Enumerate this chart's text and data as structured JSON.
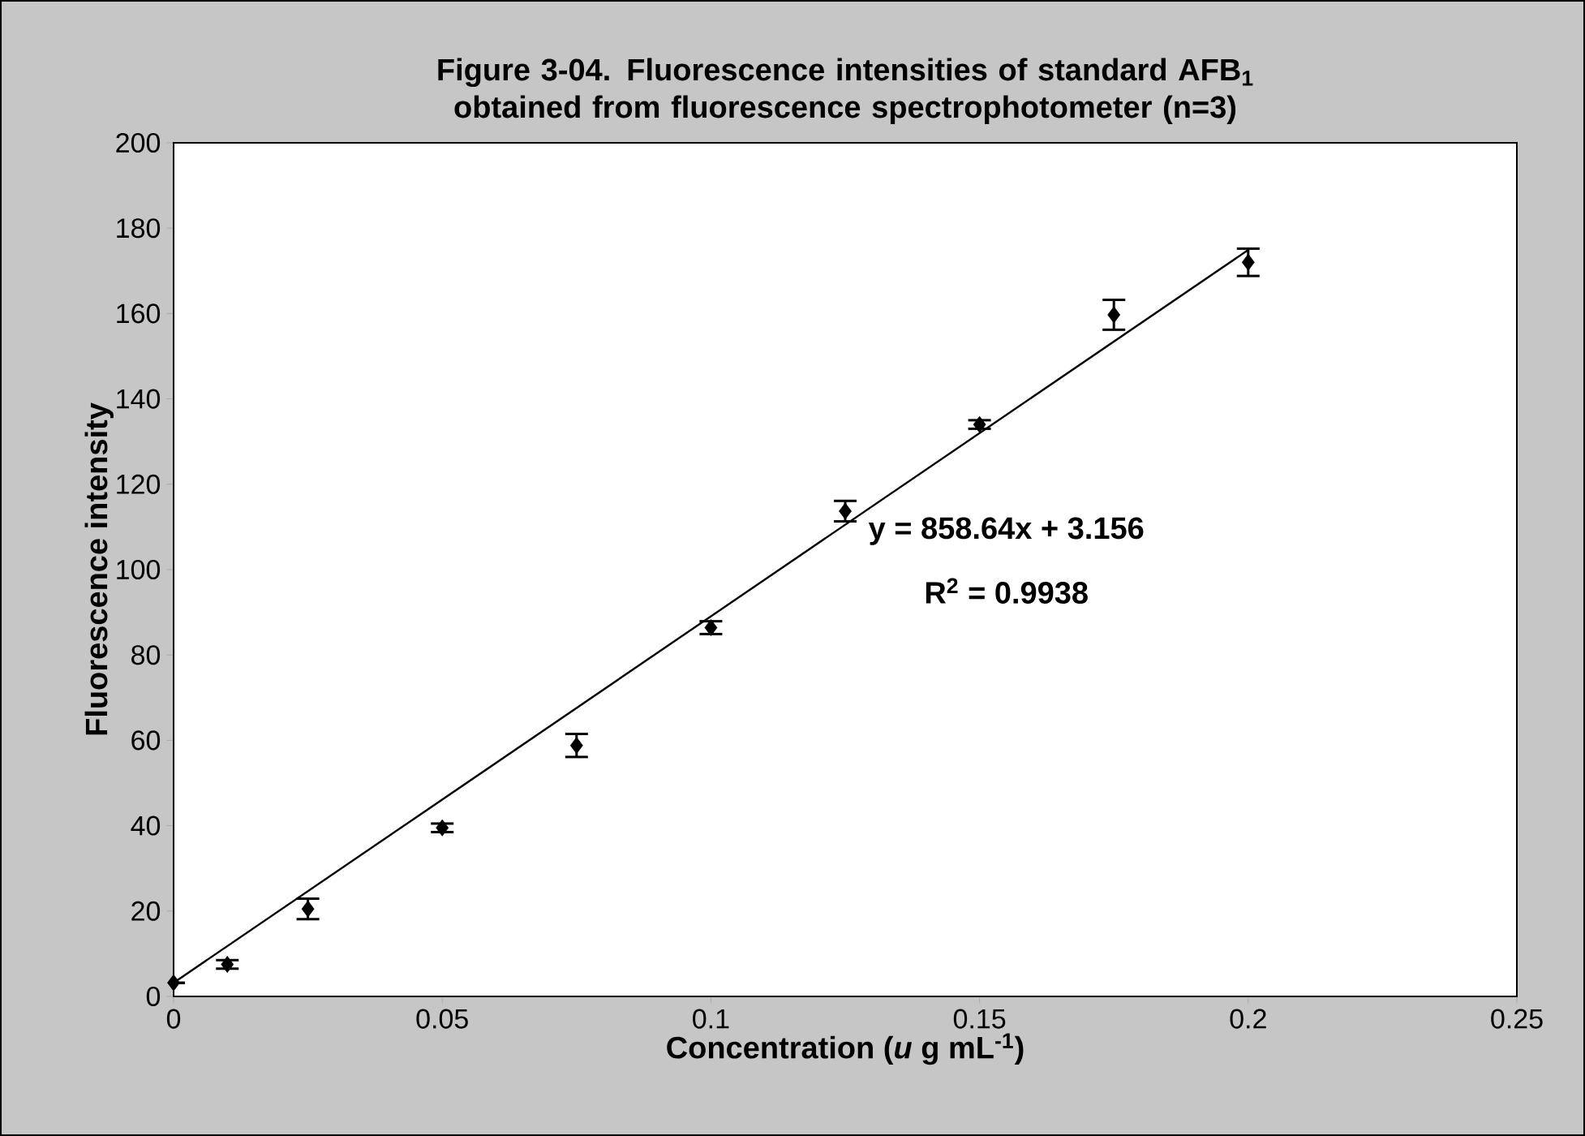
{
  "chart_data": {
    "type": "scatter",
    "title": "Figure 3-04. Fluorescence intensities of standard AFB$_{1}$ obtained from fluorescence spectrophotometer (n=3)",
    "xlabel": "Concentration (*u* g mL$^{-1}$)",
    "ylabel": "Fluorescence intensity",
    "annotations": [
      "y = 858.64x + 3.156",
      "R$^{2}$ = 0.9938"
    ],
    "series": [
      {
        "color": "#000000",
        "x": [
          0,
          0.01,
          0.025,
          0.05,
          0.075,
          0.1,
          0.125,
          0.15,
          0.175,
          0.2
        ],
        "values": [
          3.2,
          7.5,
          20.5,
          39.5,
          58.8,
          86.4,
          113.7,
          134,
          159.7,
          172
        ],
        "errors": [
          null,
          1,
          2.4,
          1,
          2.7,
          1.5,
          2.4,
          1,
          3.5,
          3.2
        ]
      },
      {
        "type": "line",
        "marker": "none",
        "color": "#000000",
        "x": [
          0,
          0.2
        ],
        "values": [
          3.2,
          174.9
        ]
      }
    ],
    "xlim": [
      0,
      0.25
    ],
    "xticks": [
      0,
      0.05,
      0.1,
      0.15,
      0.2,
      0.25
    ],
    "ylim": [
      0,
      200
    ],
    "yticks": [
      0,
      20,
      40,
      60,
      80,
      100,
      120,
      140,
      160,
      180,
      200
    ],
    "marker": "diamond",
    "grid": false,
    "legend": false
  }
}
